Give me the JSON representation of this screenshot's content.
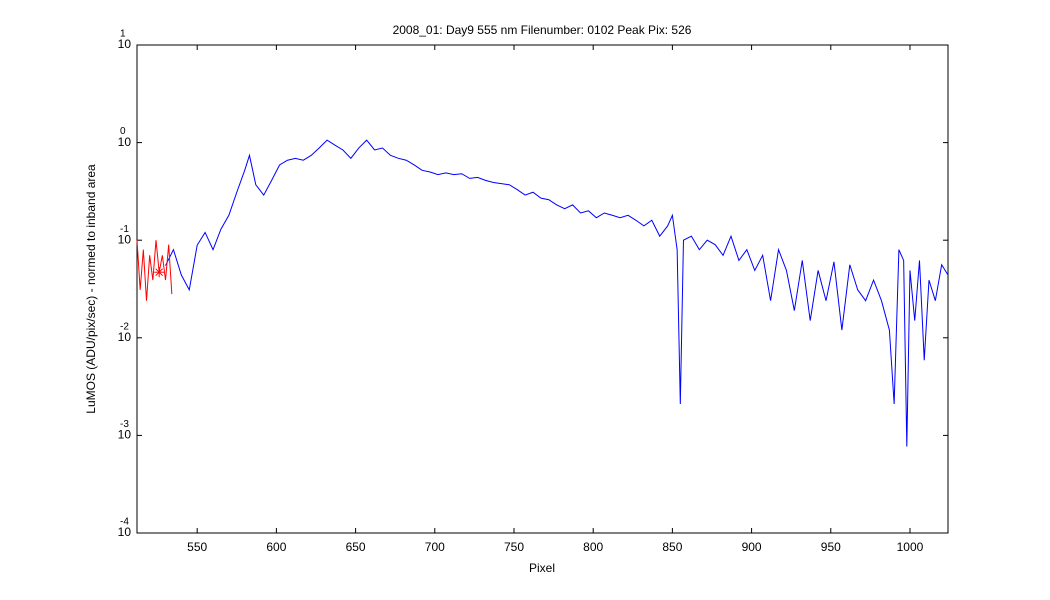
{
  "chart_data": {
    "type": "line",
    "title": "2008_01: Day9  555 nm  Filenumber: 0102 Peak Pix: 526",
    "x_label": "Pixel",
    "y_label": "LuMOS (ADU/pix/sec) - normed to inband area",
    "log_y": true,
    "grid": false,
    "xlim": [
      512,
      1024
    ],
    "ylim": [
      0.0001,
      10
    ],
    "xticks": [
      550,
      600,
      650,
      700,
      750,
      800,
      850,
      900,
      950,
      1000
    ],
    "yticks": [
      {
        "value": 10,
        "label": "10",
        "exponent": "1"
      },
      {
        "value": 1,
        "label": "10",
        "exponent": "0"
      },
      {
        "value": 0.1,
        "label": "10",
        "exponent": "-1"
      },
      {
        "value": 0.01,
        "label": "10",
        "exponent": "-2"
      },
      {
        "value": 0.001,
        "label": "10",
        "exponent": "-3"
      },
      {
        "value": 0.0001,
        "label": "10",
        "exponent": "-4"
      }
    ],
    "series": [
      {
        "color": "#0000ff",
        "x": [
          530,
          535,
          540,
          545,
          550,
          555,
          560,
          565,
          570,
          575,
          580,
          583,
          587,
          592,
          597,
          602,
          607,
          612,
          617,
          622,
          627,
          632,
          637,
          642,
          647,
          652,
          657,
          662,
          667,
          672,
          677,
          682,
          687,
          692,
          697,
          702,
          707,
          712,
          717,
          722,
          727,
          732,
          737,
          742,
          747,
          752,
          757,
          762,
          767,
          772,
          777,
          782,
          787,
          792,
          797,
          802,
          807,
          812,
          817,
          822,
          827,
          832,
          837,
          842,
          847,
          850,
          853,
          855,
          857,
          862,
          867,
          872,
          877,
          882,
          887,
          892,
          897,
          902,
          907,
          912,
          917,
          922,
          927,
          932,
          937,
          942,
          947,
          952,
          957,
          962,
          967,
          972,
          977,
          982,
          987,
          990,
          993,
          996,
          998,
          1000,
          1003,
          1006,
          1009,
          1012,
          1016,
          1020,
          1024
        ],
        "values": [
          0.055,
          0.08,
          0.044,
          0.031,
          0.089,
          0.12,
          0.08,
          0.13,
          0.18,
          0.31,
          0.52,
          0.74,
          0.37,
          0.29,
          0.41,
          0.59,
          0.66,
          0.69,
          0.66,
          0.74,
          0.88,
          1.06,
          0.94,
          0.84,
          0.69,
          0.88,
          1.06,
          0.84,
          0.88,
          0.74,
          0.69,
          0.66,
          0.59,
          0.52,
          0.5,
          0.47,
          0.49,
          0.47,
          0.48,
          0.43,
          0.44,
          0.41,
          0.39,
          0.38,
          0.37,
          0.33,
          0.29,
          0.31,
          0.27,
          0.26,
          0.23,
          0.21,
          0.23,
          0.19,
          0.2,
          0.17,
          0.19,
          0.18,
          0.17,
          0.18,
          0.16,
          0.14,
          0.16,
          0.11,
          0.14,
          0.18,
          0.08,
          0.0021,
          0.1,
          0.11,
          0.08,
          0.1,
          0.09,
          0.07,
          0.11,
          0.062,
          0.08,
          0.049,
          0.07,
          0.024,
          0.08,
          0.049,
          0.019,
          0.062,
          0.015,
          0.049,
          0.024,
          0.06,
          0.012,
          0.056,
          0.031,
          0.024,
          0.039,
          0.024,
          0.012,
          0.0021,
          0.08,
          0.062,
          0.00077,
          0.049,
          0.015,
          0.062,
          0.0059,
          0.039,
          0.024,
          0.056,
          0.044
        ]
      },
      {
        "color": "#ff0000",
        "x": [
          512,
          514,
          516,
          518,
          520,
          522,
          524,
          526,
          528,
          530,
          532,
          534
        ],
        "values": [
          0.1,
          0.031,
          0.08,
          0.024,
          0.07,
          0.039,
          0.1,
          0.047,
          0.07,
          0.039,
          0.09,
          0.028
        ]
      }
    ],
    "peak": {
      "x": 526,
      "value": 0.047,
      "color": "#ff0000"
    }
  }
}
